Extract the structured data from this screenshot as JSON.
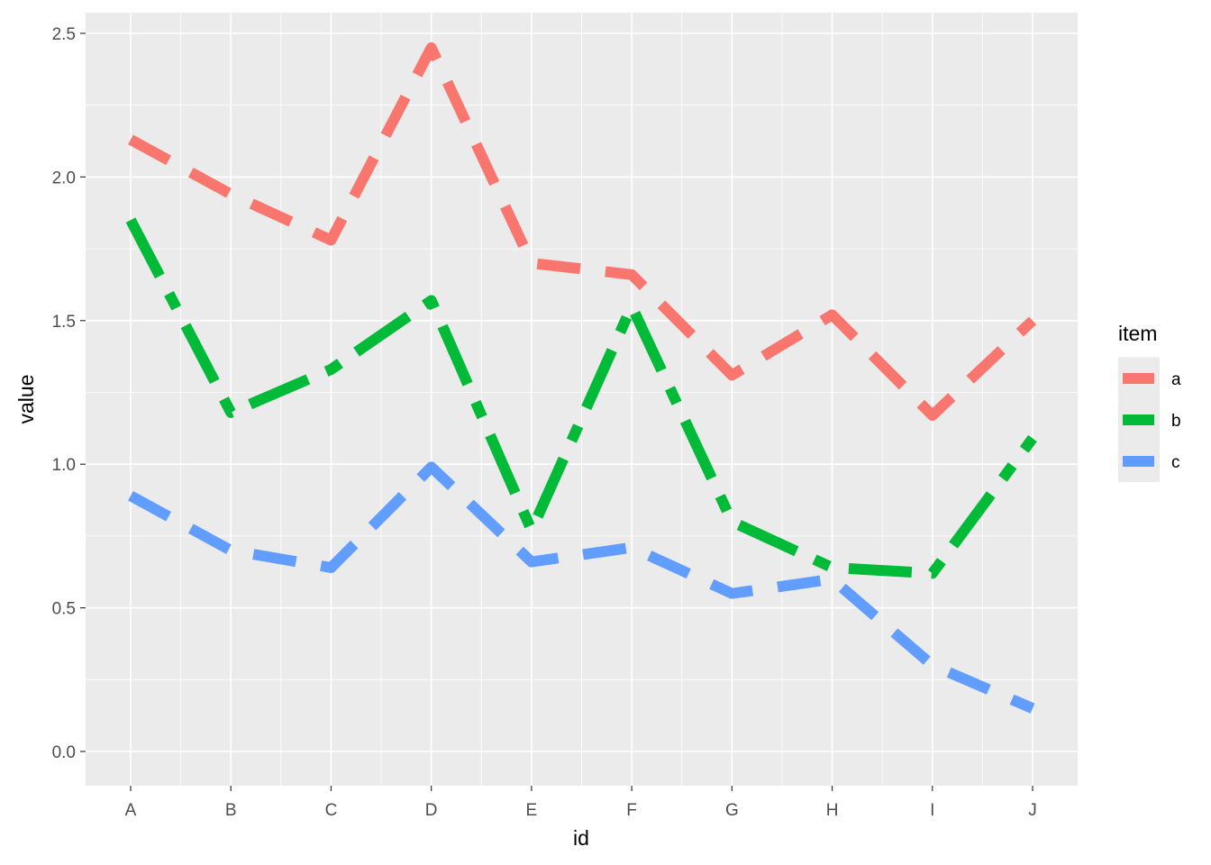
{
  "chart_data": {
    "type": "line",
    "title": "",
    "xlabel": "id",
    "ylabel": "value",
    "categories": [
      "A",
      "B",
      "C",
      "D",
      "E",
      "F",
      "G",
      "H",
      "I",
      "J"
    ],
    "ylim": [
      -0.12,
      2.57
    ],
    "yticks": [
      "0.0",
      "0.5",
      "1.0",
      "1.5",
      "2.0",
      "2.5"
    ],
    "ytick_values": [
      0,
      0.5,
      1,
      1.5,
      2,
      2.5
    ],
    "grid": true,
    "legend": {
      "title": "item",
      "placement": "right"
    },
    "series": [
      {
        "name": "a",
        "color": "#F8766D",
        "linetype": "dashed",
        "values": [
          2.13,
          1.94,
          1.78,
          2.45,
          1.7,
          1.66,
          1.31,
          1.52,
          1.17,
          1.5
        ]
      },
      {
        "name": "b",
        "color": "#00BA38",
        "linetype": "longdash-dot",
        "values": [
          1.85,
          1.18,
          1.33,
          1.57,
          0.77,
          1.55,
          0.8,
          0.64,
          0.62,
          1.09
        ]
      },
      {
        "name": "c",
        "color": "#619CFF",
        "linetype": "dashed",
        "values": [
          0.89,
          0.7,
          0.64,
          0.99,
          0.66,
          0.71,
          0.55,
          0.6,
          0.3,
          0.15
        ]
      }
    ]
  }
}
